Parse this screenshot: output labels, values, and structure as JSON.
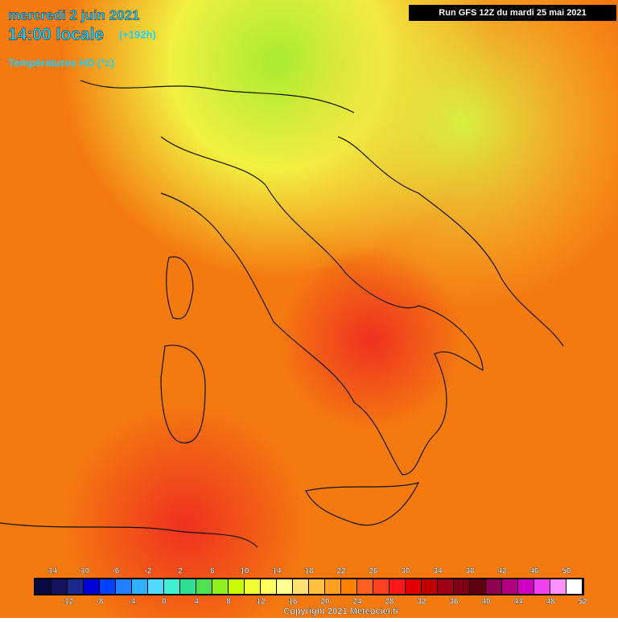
{
  "header": {
    "date": "mercredi 2 juin 2021",
    "time": "14:00 locale",
    "lead": "(+192h)",
    "field": "Températures HD (°c)",
    "run": "Run GFS 12Z du mardi 25 mai 2021"
  },
  "legend": {
    "ticks": [
      -14,
      -12,
      -10,
      -8,
      -6,
      -4,
      -2,
      0,
      2,
      4,
      6,
      8,
      10,
      12,
      14,
      16,
      18,
      20,
      22,
      24,
      26,
      28,
      30,
      32,
      34,
      36,
      38,
      40,
      42,
      44,
      46,
      48,
      50,
      52
    ],
    "colors": [
      "#0a0a40",
      "#14145e",
      "#1a2a8a",
      "#0000d8",
      "#0040ff",
      "#2080ff",
      "#30b0ff",
      "#50d8ff",
      "#40f0d0",
      "#30e090",
      "#50e050",
      "#90f020",
      "#c8ff00",
      "#f0ff30",
      "#ffff60",
      "#ffff90",
      "#ffe070",
      "#ffc040",
      "#ffa020",
      "#ff8000",
      "#ff6020",
      "#ff4020",
      "#ff1818",
      "#e00000",
      "#c00000",
      "#a00018",
      "#800018",
      "#600010",
      "#900050",
      "#b00080",
      "#d000c0",
      "#f040f0",
      "#ff90ff",
      "#ffffff"
    ]
  },
  "footer": {
    "copyright": "Copyright 2021 Meteociel.fr"
  }
}
